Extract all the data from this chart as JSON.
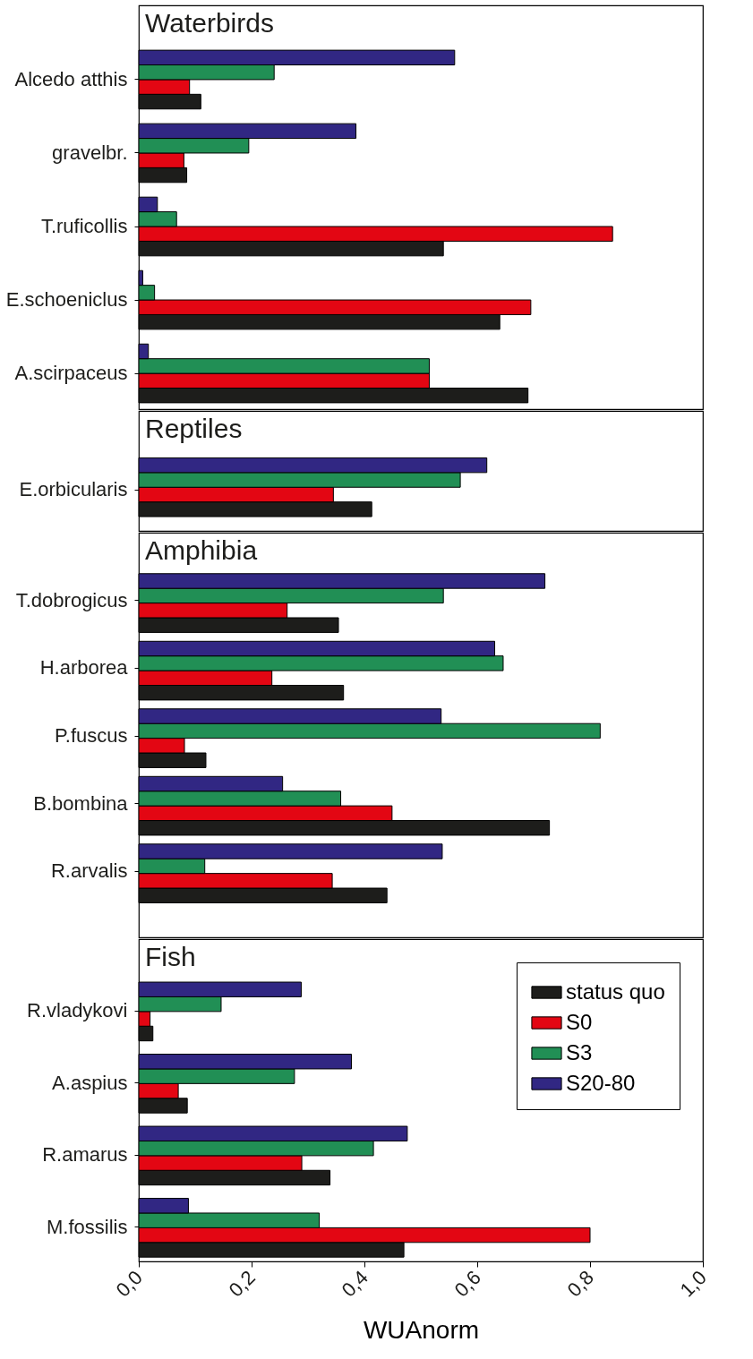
{
  "chart_data": [
    {
      "type": "bar",
      "orientation": "horizontal",
      "title": "Waterbirds",
      "categories": [
        "Alcedo atthis",
        "gravelbr.",
        "T.ruficollis",
        "E.schoeniclus",
        "A.scirpaceus"
      ],
      "xlim": [
        0,
        1
      ],
      "tick_labels": "y",
      "legend": false,
      "series": [
        {
          "color": "#1d1d1b",
          "values": [
            0.11,
            0.085,
            0.54,
            0.64,
            0.69
          ]
        },
        {
          "color": "#e30613",
          "values": [
            0.09,
            0.08,
            0.84,
            0.695,
            0.515
          ]
        },
        {
          "color": "#218f55",
          "values": [
            0.24,
            0.195,
            0.067,
            0.028,
            0.515
          ]
        },
        {
          "color": "#312783",
          "values": [
            0.56,
            0.385,
            0.033,
            0.007,
            0.017
          ]
        }
      ]
    },
    {
      "type": "bar",
      "orientation": "horizontal",
      "title": "Reptiles",
      "categories": [
        "E.orbicularis"
      ],
      "xlim": [
        0,
        1
      ],
      "tick_labels": "y",
      "legend": false,
      "series": [
        {
          "color": "#1d1d1b",
          "values": [
            0.413
          ]
        },
        {
          "color": "#e30613",
          "values": [
            0.345
          ]
        },
        {
          "color": "#218f55",
          "values": [
            0.57
          ]
        },
        {
          "color": "#312783",
          "values": [
            0.617
          ]
        }
      ]
    },
    {
      "type": "bar",
      "orientation": "horizontal",
      "title": "Amphibia",
      "categories": [
        "T.dobrogicus",
        "H.arborea",
        "P.fuscus",
        "B.bombina",
        "R.arvalis"
      ],
      "xlim": [
        0,
        1
      ],
      "tick_labels": "y",
      "legend": false,
      "series": [
        {
          "color": "#1d1d1b",
          "values": [
            0.354,
            0.363,
            0.119,
            0.728,
            0.44
          ]
        },
        {
          "color": "#e30613",
          "values": [
            0.263,
            0.236,
            0.081,
            0.449,
            0.343
          ]
        },
        {
          "color": "#218f55",
          "values": [
            0.54,
            0.646,
            0.818,
            0.358,
            0.117
          ]
        },
        {
          "color": "#312783",
          "values": [
            0.72,
            0.631,
            0.536,
            0.255,
            0.538
          ]
        }
      ]
    },
    {
      "type": "bar",
      "orientation": "horizontal",
      "title": "Fish",
      "categories": [
        "R.vladykovi",
        "A.aspius",
        "R.amarus",
        "M.fossilis"
      ],
      "xlim": [
        0,
        1
      ],
      "xlabel": "WUAnorm",
      "legend": "top right",
      "xticks": [
        {
          "value": 0,
          "label": "0,0"
        },
        {
          "value": 0.2,
          "label": "0,2"
        },
        {
          "value": 0.4,
          "label": "0,4"
        },
        {
          "value": 0.6,
          "label": "0,6"
        },
        {
          "value": 0.8,
          "label": "0,8"
        },
        {
          "value": 1,
          "label": "1,0"
        }
      ],
      "series": [
        {
          "name": "status quo",
          "color": "#1d1d1b",
          "values": [
            0.025,
            0.086,
            0.339,
            0.47
          ]
        },
        {
          "name": "S0",
          "color": "#e30613",
          "values": [
            0.02,
            0.07,
            0.289,
            0.8
          ]
        },
        {
          "name": "S3",
          "color": "#218f55",
          "values": [
            0.146,
            0.276,
            0.416,
            0.32
          ]
        },
        {
          "name": "S20-80",
          "color": "#312783",
          "values": [
            0.288,
            0.377,
            0.476,
            0.088
          ]
        }
      ]
    }
  ]
}
